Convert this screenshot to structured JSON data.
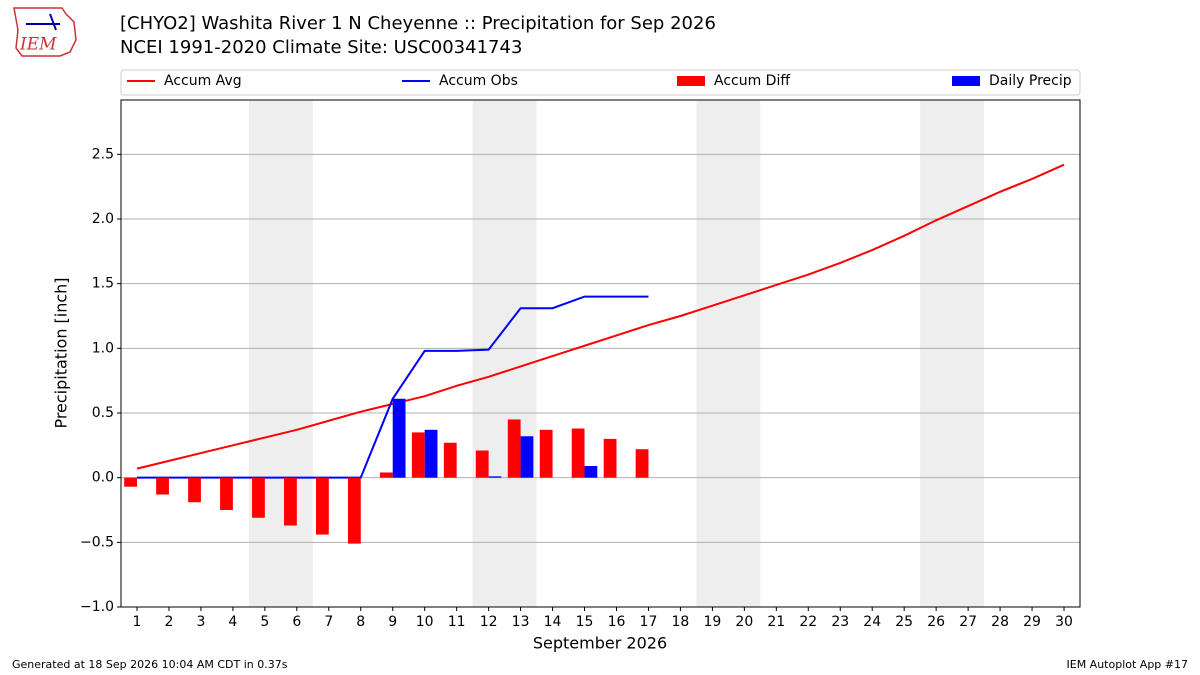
{
  "chart_data": {
    "type": "combo",
    "title": "[CHYO2] Washita River 1 N Cheyenne :: Precipitation for Sep 2026",
    "subtitle": "NCEI 1991-2020 Climate Site: USC00341743",
    "ylabel": "Precipitation [inch]",
    "xlabel": "September 2026",
    "logo_text": "IEM",
    "footer_left": "Generated at 18 Sep 2026 10:04 AM CDT in 0.37s",
    "footer_right": "IEM Autoplot App #17",
    "x": [
      1,
      2,
      3,
      4,
      5,
      6,
      7,
      8,
      9,
      10,
      11,
      12,
      13,
      14,
      15,
      16,
      17,
      18,
      19,
      20,
      21,
      22,
      23,
      24,
      25,
      26,
      27,
      28,
      29,
      30
    ],
    "xlim": [
      0.5,
      30.5
    ],
    "xticks": [
      1,
      2,
      3,
      4,
      5,
      6,
      7,
      8,
      9,
      10,
      11,
      12,
      13,
      14,
      15,
      16,
      17,
      18,
      19,
      20,
      21,
      22,
      23,
      24,
      25,
      26,
      27,
      28,
      29,
      30
    ],
    "ylim": [
      -1.0,
      2.92
    ],
    "yticks": [
      {
        "value": -1.0,
        "label": "−1.0"
      },
      {
        "value": -0.5,
        "label": "−0.5"
      },
      {
        "value": 0,
        "label": "0.0"
      },
      {
        "value": 0.5,
        "label": "0.5"
      },
      {
        "value": 1.0,
        "label": "1.0"
      },
      {
        "value": 1.5,
        "label": "1.5"
      },
      {
        "value": 2.0,
        "label": "2.0"
      },
      {
        "value": 2.5,
        "label": "2.5"
      }
    ],
    "grid": true,
    "shaded_spans": [
      [
        4.5,
        6.5
      ],
      [
        11.5,
        13.5
      ],
      [
        18.5,
        20.5
      ],
      [
        25.5,
        27.5
      ]
    ],
    "series": [
      {
        "name": "Accum Avg",
        "type": "line",
        "color": "#ff0000",
        "values": [
          0.07,
          0.13,
          0.19,
          0.25,
          0.31,
          0.37,
          0.44,
          0.51,
          0.57,
          0.63,
          0.71,
          0.78,
          0.86,
          0.94,
          1.02,
          1.1,
          1.18,
          1.25,
          1.33,
          1.41,
          1.49,
          1.57,
          1.66,
          1.76,
          1.87,
          1.99,
          2.1,
          2.21,
          2.31,
          2.42
        ]
      },
      {
        "name": "Accum Obs",
        "type": "line",
        "color": "#0000ff",
        "values": [
          0,
          0,
          0,
          0,
          0,
          0,
          0,
          0,
          0.61,
          0.98,
          0.98,
          0.99,
          1.31,
          1.31,
          1.4,
          1.4,
          1.4,
          null,
          null,
          null,
          null,
          null,
          null,
          null,
          null,
          null,
          null,
          null,
          null,
          null
        ]
      },
      {
        "name": "Accum Diff",
        "type": "bar",
        "color": "#ff0000",
        "values": [
          -0.07,
          -0.13,
          -0.19,
          -0.25,
          -0.31,
          -0.37,
          -0.44,
          -0.51,
          0.04,
          0.35,
          0.27,
          0.21,
          0.45,
          0.37,
          0.38,
          0.3,
          0.22,
          null,
          null,
          null,
          null,
          null,
          null,
          null,
          null,
          null,
          null,
          null,
          null,
          null
        ]
      },
      {
        "name": "Daily Precip",
        "type": "bar",
        "color": "#0000ff",
        "values": [
          0,
          0,
          0,
          0,
          0,
          0,
          0,
          0,
          0.61,
          0.37,
          0,
          0.01,
          0.32,
          0,
          0.09,
          0,
          0,
          null,
          null,
          null,
          null,
          null,
          null,
          null,
          null,
          null,
          null,
          null,
          null,
          null
        ]
      }
    ]
  }
}
